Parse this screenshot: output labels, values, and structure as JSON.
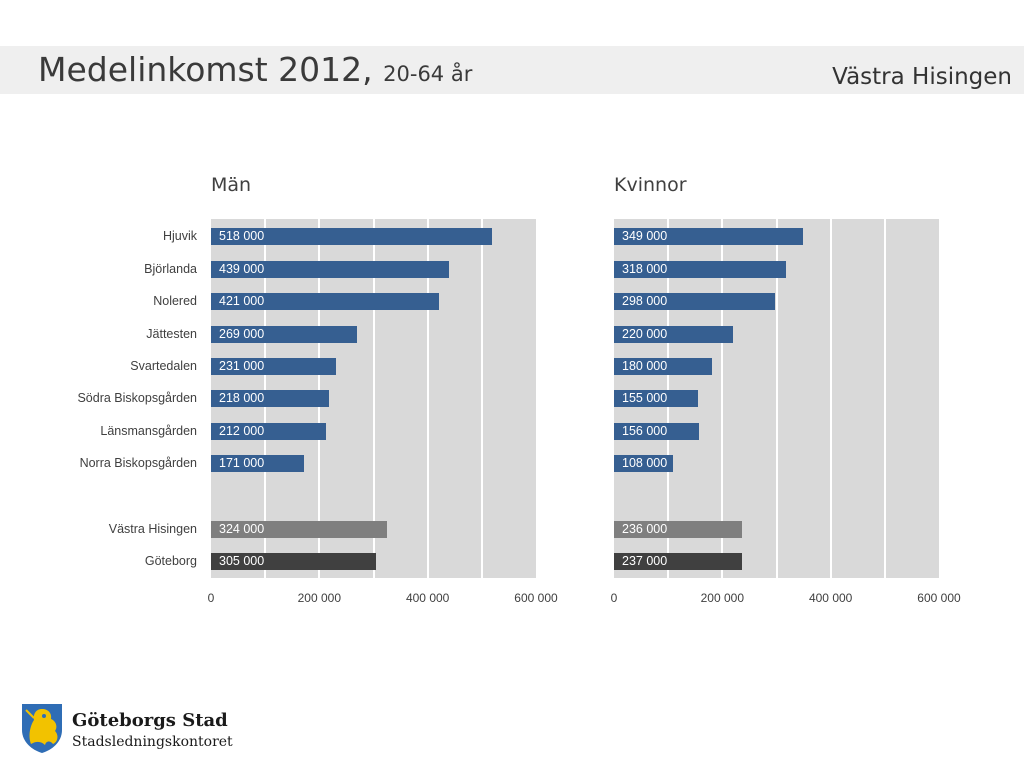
{
  "header": {
    "title_main": "Medelinkomst 2012, ",
    "title_sub": "20-64 år",
    "region": "Västra Hisingen"
  },
  "colors": {
    "district": "#365f91",
    "vastra_hisingen": "#7f7f7f",
    "goteborg": "#404040",
    "plot_bg": "#d9d9d9"
  },
  "chart_data": [
    {
      "type": "bar",
      "orientation": "horizontal",
      "title": "Män",
      "categories": [
        "Hjuvik",
        "Björlanda",
        "Nolered",
        "Jättesten",
        "Svartedalen",
        "Södra Biskopsgården",
        "Länsmansgården",
        "Norra Biskopsgården",
        "Västra Hisingen",
        "Göteborg"
      ],
      "values": [
        518000,
        439000,
        421000,
        269000,
        231000,
        218000,
        212000,
        171000,
        324000,
        305000
      ],
      "value_labels": [
        "518 000",
        "439 000",
        "421 000",
        "269 000",
        "231 000",
        "218 000",
        "212 000",
        "171 000",
        "324 000",
        "305 000"
      ],
      "xlim": [
        0,
        600000
      ],
      "xticks": [
        "0",
        "200 000",
        "400 000",
        "600 000"
      ],
      "grid": true
    },
    {
      "type": "bar",
      "orientation": "horizontal",
      "title": "Kvinnor",
      "categories": [
        "Hjuvik",
        "Björlanda",
        "Nolered",
        "Jättesten",
        "Svartedalen",
        "Södra Biskopsgården",
        "Länsmansgården",
        "Norra Biskopsgården",
        "Västra Hisingen",
        "Göteborg"
      ],
      "values": [
        349000,
        318000,
        298000,
        220000,
        180000,
        155000,
        156000,
        108000,
        236000,
        237000
      ],
      "value_labels": [
        "349 000",
        "318 000",
        "298 000",
        "220 000",
        "180 000",
        "155 000",
        "156 000",
        "108 000",
        "236 000",
        "237 000"
      ],
      "xlim": [
        0,
        600000
      ],
      "xticks": [
        "0",
        "200 000",
        "400 000",
        "600 000"
      ],
      "grid": true
    }
  ],
  "logo": {
    "name": "Göteborgs Stad",
    "sub": "Stadsledningskontoret",
    "icon": "goteborg-lion-crest-icon"
  }
}
